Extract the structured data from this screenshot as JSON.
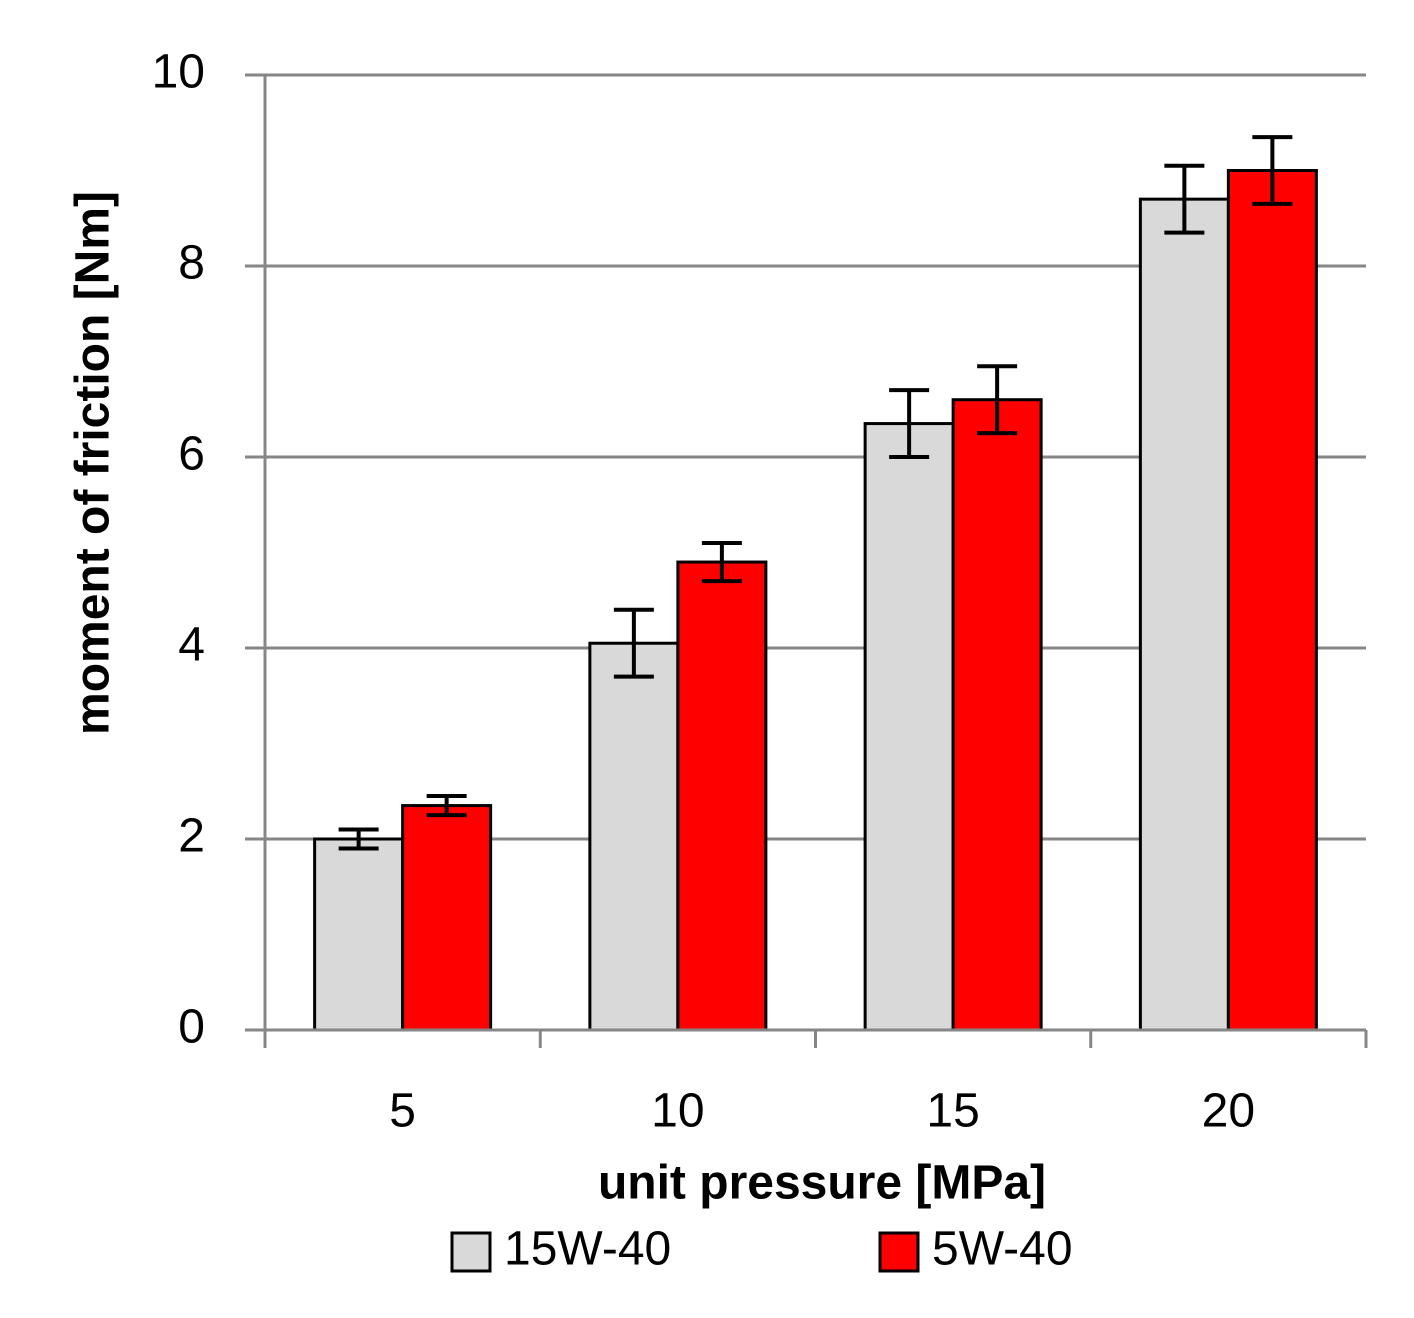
{
  "chart_data": {
    "type": "bar",
    "title": "",
    "xlabel": "unit pressure  [MPa]",
    "ylabel": "moment of  friction [Nm]",
    "categories": [
      "5",
      "10",
      "15",
      "20"
    ],
    "ylim": [
      0,
      10
    ],
    "yticks": [
      "0",
      "2",
      "4",
      "6",
      "8",
      "10"
    ],
    "grid": true,
    "legend_position": "bottom",
    "series": [
      {
        "name": "15W-40",
        "color": "#d9d9d9",
        "values": [
          2.0,
          4.05,
          6.35,
          8.7
        ],
        "errors": [
          0.1,
          0.35,
          0.35,
          0.35
        ]
      },
      {
        "name": "5W-40",
        "color": "#ff0000",
        "values": [
          2.35,
          4.9,
          6.6,
          9.0
        ],
        "errors": [
          0.1,
          0.2,
          0.35,
          0.35
        ]
      }
    ]
  }
}
